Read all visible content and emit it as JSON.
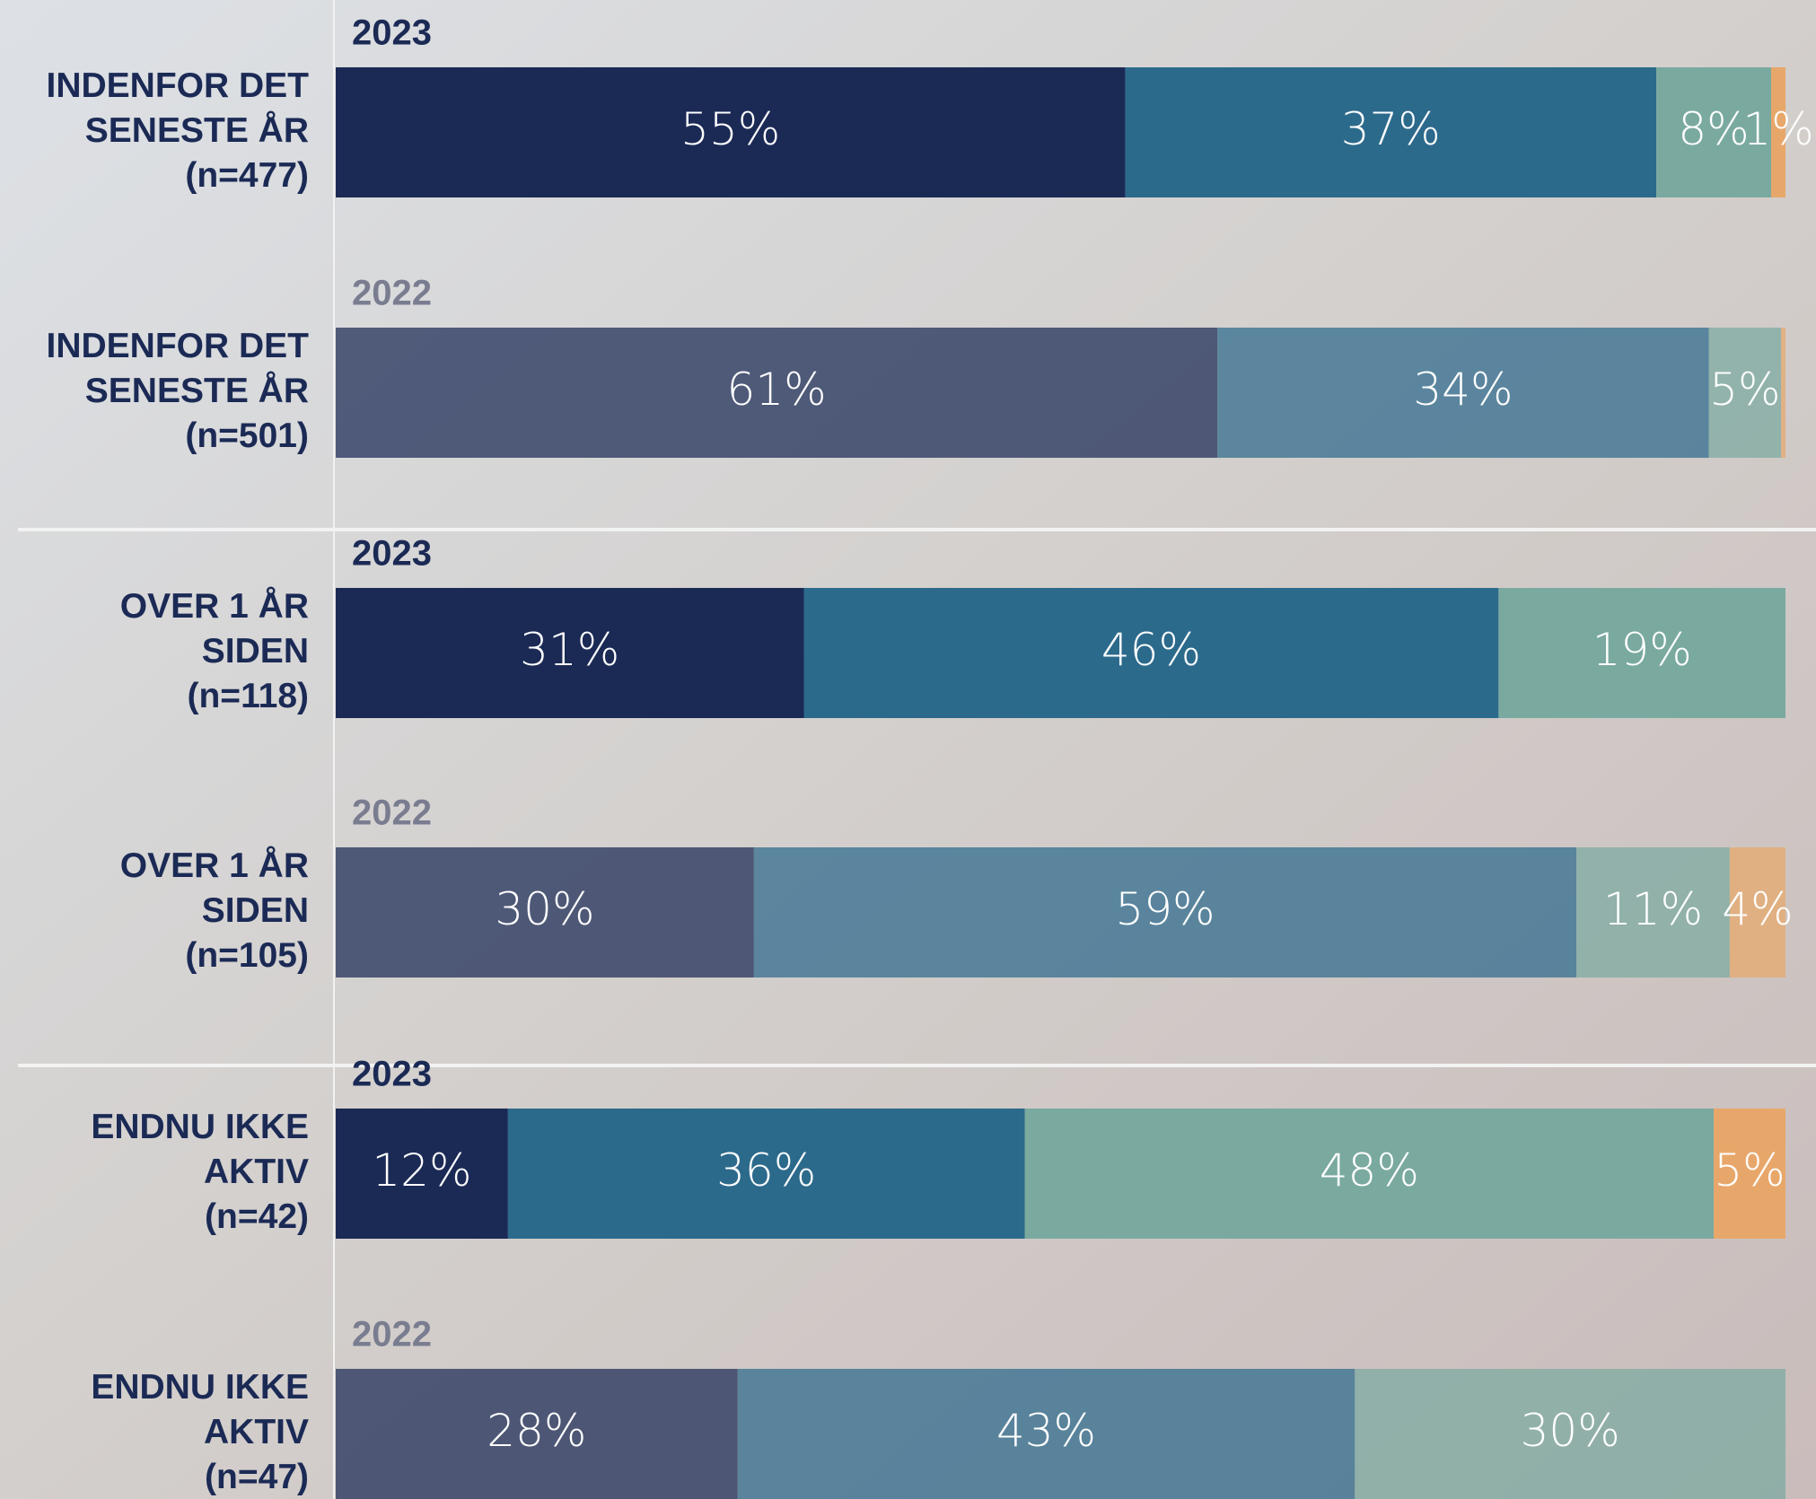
{
  "chart_data": {
    "type": "stacked-barh",
    "years": [
      "2023",
      "2022",
      "2023",
      "2022",
      "2023",
      "2022"
    ],
    "categories": [
      [
        "INDENFOR DET",
        "SENESTE ÅR",
        "(n=477)"
      ],
      [
        "INDENFOR DET",
        "SENESTE ÅR",
        "(n=501)"
      ],
      [
        "OVER 1 ÅR",
        "SIDEN",
        "(n=118)"
      ],
      [
        "OVER 1 ÅR",
        "SIDEN",
        "(n=105)"
      ],
      [
        "ENDNU IKKE",
        "AKTIV",
        "(n=42)"
      ],
      [
        "ENDNU IKKE",
        "AKTIV",
        "(n=47)"
      ]
    ],
    "series": [
      {
        "color": "#1b2a55",
        "values": [
          55,
          61,
          31,
          30,
          12,
          28
        ],
        "value_labels": [
          "55%",
          "61%",
          "31%",
          "30%",
          "12%",
          "28%"
        ]
      },
      {
        "color": "#2c6a8c",
        "values": [
          37,
          34,
          46,
          59,
          36,
          43
        ],
        "value_labels": [
          "37%",
          "34%",
          "46%",
          "59%",
          "36%",
          "43%"
        ]
      },
      {
        "color": "#7aa9a0",
        "values": [
          8,
          5,
          19,
          11,
          48,
          30
        ],
        "value_labels": [
          "8%",
          "5%",
          "19%",
          "11%",
          "48%",
          "30%"
        ]
      },
      {
        "color": "#e8a76a",
        "values": [
          1,
          0.3,
          null,
          4,
          5,
          null
        ],
        "value_labels": [
          "1%",
          null,
          null,
          "4%",
          "5%",
          null
        ]
      }
    ]
  }
}
